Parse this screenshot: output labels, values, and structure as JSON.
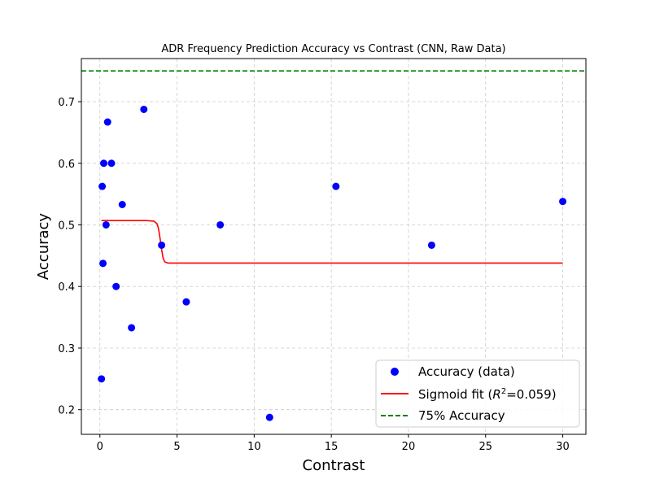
{
  "chart_data": {
    "type": "scatter",
    "title": "ADR Frequency Prediction Accuracy vs Contrast (CNN, Raw Data)",
    "xlabel": "Contrast",
    "ylabel": "Accuracy",
    "xlim": [
      -1.2,
      31.5
    ],
    "ylim": [
      0.16,
      0.77
    ],
    "xticks": [
      0,
      5,
      10,
      15,
      20,
      25,
      30
    ],
    "yticks": [
      0.2,
      0.3,
      0.4,
      0.5,
      0.6,
      0.7
    ],
    "grid": true,
    "legend_position": "lower-right",
    "colors": {
      "points": "#0000ff",
      "fit": "#ff0000",
      "threshold": "#008000"
    },
    "series": [
      {
        "name": "Accuracy (data)",
        "kind": "scatter",
        "x": [
          0.1,
          0.15,
          0.2,
          0.25,
          0.4,
          0.5,
          0.75,
          1.05,
          1.45,
          2.05,
          2.85,
          4.0,
          5.6,
          7.8,
          11.0,
          15.3,
          21.5,
          30.0
        ],
        "y": [
          0.25,
          0.5625,
          0.4375,
          0.6,
          0.5,
          0.667,
          0.6,
          0.4,
          0.533,
          0.333,
          0.6875,
          0.467,
          0.375,
          0.5,
          0.1875,
          0.5625,
          0.467,
          0.538
        ]
      },
      {
        "name_prefix": "Sigmoid fit (",
        "name_r2": "R",
        "name_suffix": "=0.059)",
        "kind": "line",
        "x": [
          0.1,
          1.0,
          2.0,
          3.0,
          3.5,
          3.7,
          3.8,
          3.9,
          4.0,
          4.1,
          4.2,
          4.4,
          5.0,
          10.0,
          20.0,
          30.0
        ],
        "y": [
          0.507,
          0.507,
          0.507,
          0.507,
          0.506,
          0.502,
          0.494,
          0.478,
          0.46,
          0.446,
          0.44,
          0.438,
          0.438,
          0.438,
          0.438,
          0.438
        ]
      },
      {
        "name": "75% Accuracy",
        "kind": "hline",
        "y": 0.75
      }
    ]
  }
}
